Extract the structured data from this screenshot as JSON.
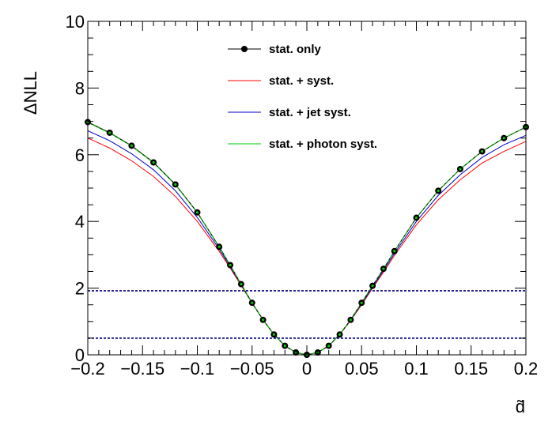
{
  "chart_data": {
    "type": "line",
    "xlabel": "d̃",
    "ylabel": "ΔNLL",
    "xlim": [
      -0.2,
      0.2
    ],
    "ylim": [
      0,
      10
    ],
    "x_ticks": [
      "−0.2",
      "−0.15",
      "−0.1",
      "−0.05",
      "0",
      "0.05",
      "0.1",
      "0.15",
      "0.2"
    ],
    "y_ticks": [
      "0",
      "2",
      "4",
      "6",
      "8",
      "10"
    ],
    "grid": false,
    "legend_position": "top-center",
    "reference_lines": [
      0.5,
      1.92
    ],
    "reference_line_color": "#00007f",
    "series": [
      {
        "name": "stat. only",
        "color": "#000000",
        "markers": true,
        "x": [
          -0.2,
          -0.18,
          -0.16,
          -0.14,
          -0.12,
          -0.1,
          -0.08,
          -0.07,
          -0.06,
          -0.05,
          -0.04,
          -0.03,
          -0.02,
          -0.01,
          0.0,
          0.01,
          0.02,
          0.03,
          0.04,
          0.05,
          0.06,
          0.07,
          0.08,
          0.1,
          0.12,
          0.14,
          0.16,
          0.18,
          0.2
        ],
        "values": [
          6.98,
          6.66,
          6.27,
          5.77,
          5.11,
          4.27,
          3.24,
          2.69,
          2.12,
          1.56,
          1.05,
          0.61,
          0.27,
          0.07,
          0.0,
          0.07,
          0.27,
          0.61,
          1.05,
          1.56,
          2.07,
          2.58,
          3.11,
          4.11,
          4.92,
          5.57,
          6.1,
          6.5,
          6.83
        ]
      },
      {
        "name": "stat. + syst.",
        "color": "#ff0000",
        "markers": false,
        "x": [
          -0.2,
          -0.18,
          -0.16,
          -0.14,
          -0.12,
          -0.1,
          -0.08,
          -0.07,
          -0.06,
          -0.05,
          -0.04,
          -0.03,
          -0.02,
          -0.01,
          0.0,
          0.01,
          0.02,
          0.03,
          0.04,
          0.05,
          0.06,
          0.07,
          0.08,
          0.1,
          0.12,
          0.14,
          0.16,
          0.18,
          0.2
        ],
        "values": [
          6.5,
          6.2,
          5.82,
          5.35,
          4.75,
          4.0,
          3.1,
          2.6,
          2.08,
          1.55,
          1.05,
          0.61,
          0.27,
          0.07,
          0.0,
          0.07,
          0.27,
          0.61,
          1.03,
          1.5,
          2.0,
          2.48,
          2.98,
          3.9,
          4.65,
          5.25,
          5.75,
          6.1,
          6.4
        ]
      },
      {
        "name": "stat. + jet syst.",
        "color": "#0000cc",
        "markers": false,
        "x": [
          -0.2,
          -0.18,
          -0.16,
          -0.14,
          -0.12,
          -0.1,
          -0.08,
          -0.07,
          -0.06,
          -0.05,
          -0.04,
          -0.03,
          -0.02,
          -0.01,
          0.0,
          0.01,
          0.02,
          0.03,
          0.04,
          0.05,
          0.06,
          0.07,
          0.08,
          0.1,
          0.12,
          0.14,
          0.16,
          0.18,
          0.2
        ],
        "values": [
          6.72,
          6.42,
          6.03,
          5.55,
          4.92,
          4.12,
          3.17,
          2.64,
          2.1,
          1.55,
          1.05,
          0.61,
          0.27,
          0.07,
          0.0,
          0.07,
          0.27,
          0.61,
          1.04,
          1.53,
          2.03,
          2.53,
          3.04,
          4.0,
          4.78,
          5.4,
          5.92,
          6.3,
          6.58
        ]
      },
      {
        "name": "stat. + photon syst.",
        "color": "#00cc00",
        "markers": false,
        "x": [
          -0.2,
          -0.18,
          -0.16,
          -0.14,
          -0.12,
          -0.1,
          -0.08,
          -0.07,
          -0.06,
          -0.05,
          -0.04,
          -0.03,
          -0.02,
          -0.01,
          0.0,
          0.01,
          0.02,
          0.03,
          0.04,
          0.05,
          0.06,
          0.07,
          0.08,
          0.1,
          0.12,
          0.14,
          0.16,
          0.18,
          0.2
        ],
        "values": [
          6.97,
          6.65,
          6.26,
          5.76,
          5.1,
          4.26,
          3.23,
          2.68,
          2.11,
          1.55,
          1.05,
          0.61,
          0.27,
          0.07,
          0.0,
          0.07,
          0.27,
          0.61,
          1.05,
          1.56,
          2.07,
          2.58,
          3.11,
          4.11,
          4.92,
          5.57,
          6.1,
          6.5,
          6.83
        ]
      }
    ]
  }
}
